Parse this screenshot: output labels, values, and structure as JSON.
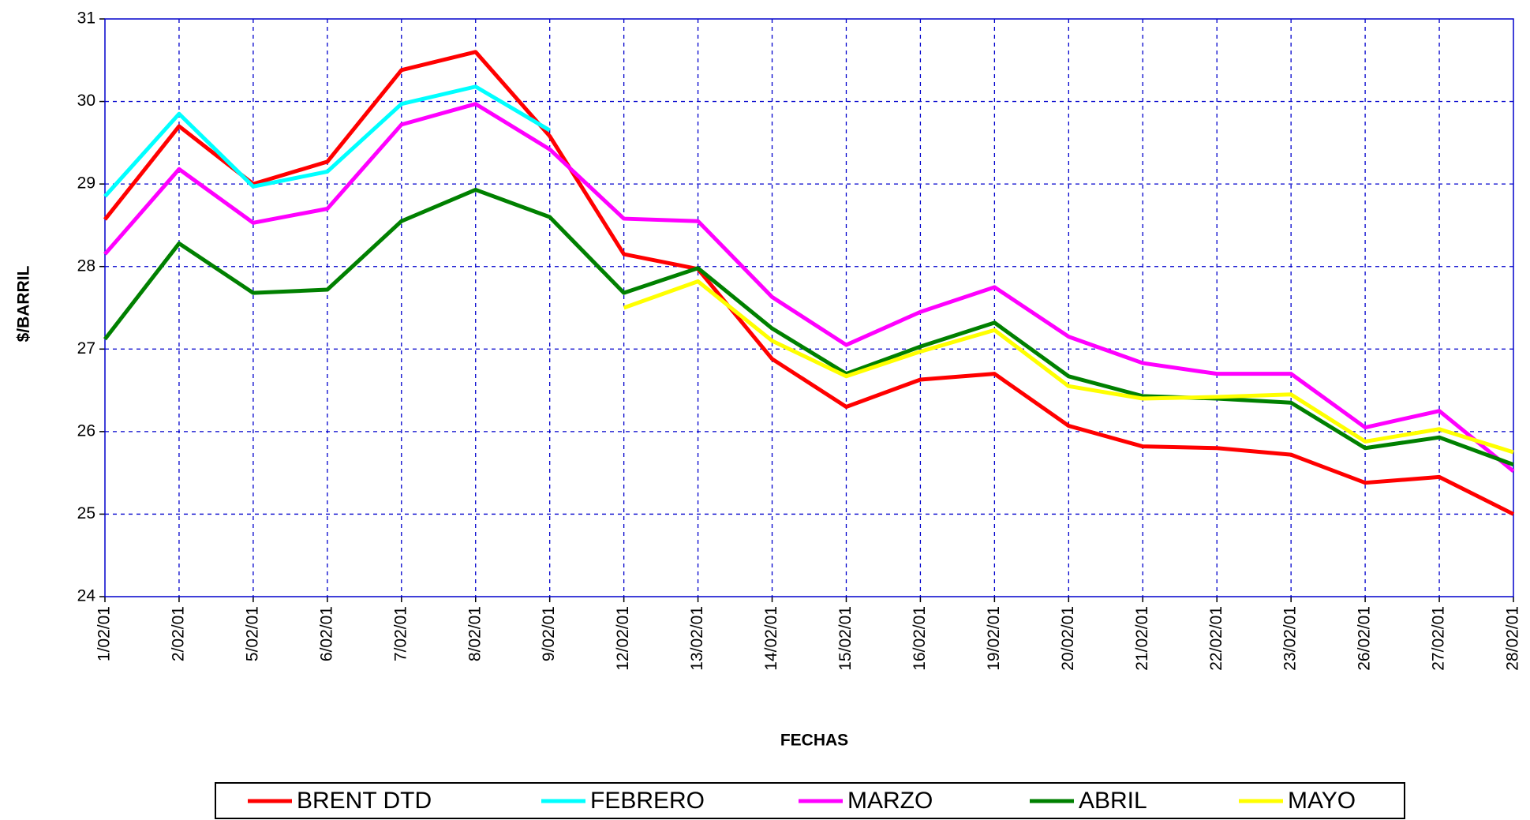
{
  "chart_data": {
    "type": "line",
    "x_label": "FECHAS",
    "y_label": "$/BARRIL",
    "categories": [
      "1/02/01",
      "2/02/01",
      "5/02/01",
      "6/02/01",
      "7/02/01",
      "8/02/01",
      "9/02/01",
      "12/02/01",
      "13/02/01",
      "14/02/01",
      "15/02/01",
      "16/02/01",
      "19/02/01",
      "20/02/01",
      "21/02/01",
      "22/02/01",
      "23/02/01",
      "26/02/01",
      "27/02/01",
      "28/02/01"
    ],
    "series": [
      {
        "name": "BRENT DTD",
        "color": "#ff0000",
        "values": [
          28.57,
          29.7,
          29.0,
          29.27,
          30.38,
          30.6,
          29.58,
          28.15,
          27.97,
          26.88,
          26.3,
          26.63,
          26.7,
          26.07,
          25.82,
          25.8,
          25.72,
          25.38,
          25.45,
          25.0
        ]
      },
      {
        "name": "FEBRERO",
        "color": "#00ffff",
        "values": [
          28.85,
          29.85,
          28.97,
          29.15,
          29.97,
          30.18,
          29.65,
          null,
          null,
          null,
          null,
          null,
          null,
          null,
          null,
          null,
          null,
          null,
          null,
          null
        ]
      },
      {
        "name": "MARZO",
        "color": "#ff00ff",
        "values": [
          28.15,
          29.18,
          28.53,
          28.7,
          29.72,
          29.97,
          29.42,
          28.58,
          28.55,
          27.63,
          27.05,
          27.45,
          27.75,
          27.15,
          26.83,
          26.7,
          26.7,
          26.05,
          26.25,
          25.52
        ]
      },
      {
        "name": "ABRIL",
        "color": "#008000",
        "values": [
          27.12,
          28.28,
          27.68,
          27.72,
          28.55,
          28.93,
          28.6,
          27.68,
          27.98,
          27.25,
          26.7,
          27.03,
          27.32,
          26.67,
          26.43,
          26.4,
          26.35,
          25.8,
          25.93,
          25.6
        ]
      },
      {
        "name": "MAYO",
        "color": "#ffff00",
        "values": [
          null,
          null,
          null,
          null,
          null,
          null,
          null,
          27.5,
          27.82,
          27.1,
          26.67,
          26.97,
          27.23,
          26.55,
          26.4,
          26.42,
          26.45,
          25.88,
          26.03,
          25.75
        ]
      }
    ],
    "ylim": [
      24,
      31
    ],
    "yticks": [
      24,
      25,
      26,
      27,
      28,
      29,
      30,
      31
    ],
    "grid": true,
    "legend": "bottom"
  }
}
